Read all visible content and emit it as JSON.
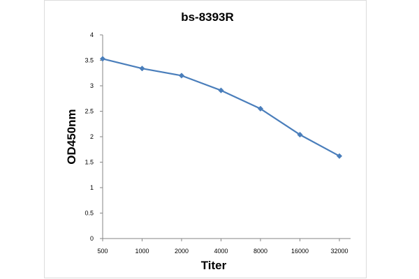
{
  "chart_data": {
    "type": "line",
    "title": "bs-8393R",
    "xlabel": "Titer",
    "ylabel": "OD450nm",
    "categories": [
      "500",
      "1000",
      "2000",
      "4000",
      "8000",
      "16000",
      "32000"
    ],
    "series": [
      {
        "values": [
          3.53,
          3.34,
          3.2,
          2.91,
          2.55,
          2.04,
          1.62
        ],
        "color": "#4a7ebb",
        "marker": "diamond"
      }
    ],
    "ylim": [
      0,
      4
    ],
    "yticks": [
      "0",
      "0.5",
      "1",
      "1.5",
      "2",
      "2.5",
      "3",
      "3.5",
      "4"
    ],
    "grid": false,
    "legend": "none"
  }
}
